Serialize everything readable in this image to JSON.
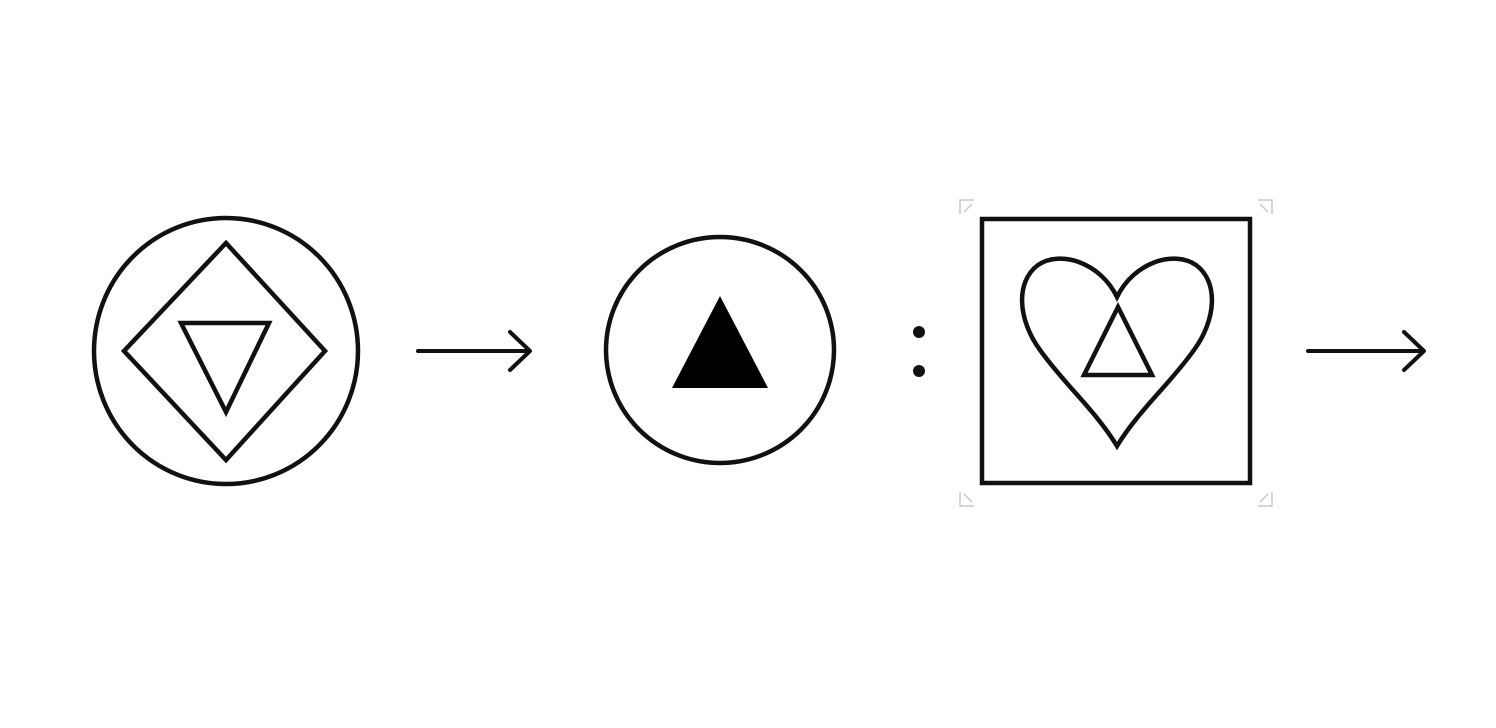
{
  "diagram": {
    "type": "analogy-sequence",
    "colors": {
      "ink": "#111111",
      "background": "#ffffff",
      "crop_marks": "#c8c8c8"
    },
    "items": [
      {
        "name": "circle-diamond-inverted-triangle",
        "outer": "circle",
        "middle": "diamond",
        "inner": "triangle-down-outline"
      },
      {
        "name": "arrow-right"
      },
      {
        "name": "circle-filled-triangle",
        "outer": "circle",
        "inner": "triangle-up-filled"
      },
      {
        "name": "ratio-colon"
      },
      {
        "name": "square-heart-triangle",
        "outer": "square",
        "middle": "heart",
        "inner": "triangle-up-outline"
      },
      {
        "name": "arrow-right"
      }
    ]
  }
}
